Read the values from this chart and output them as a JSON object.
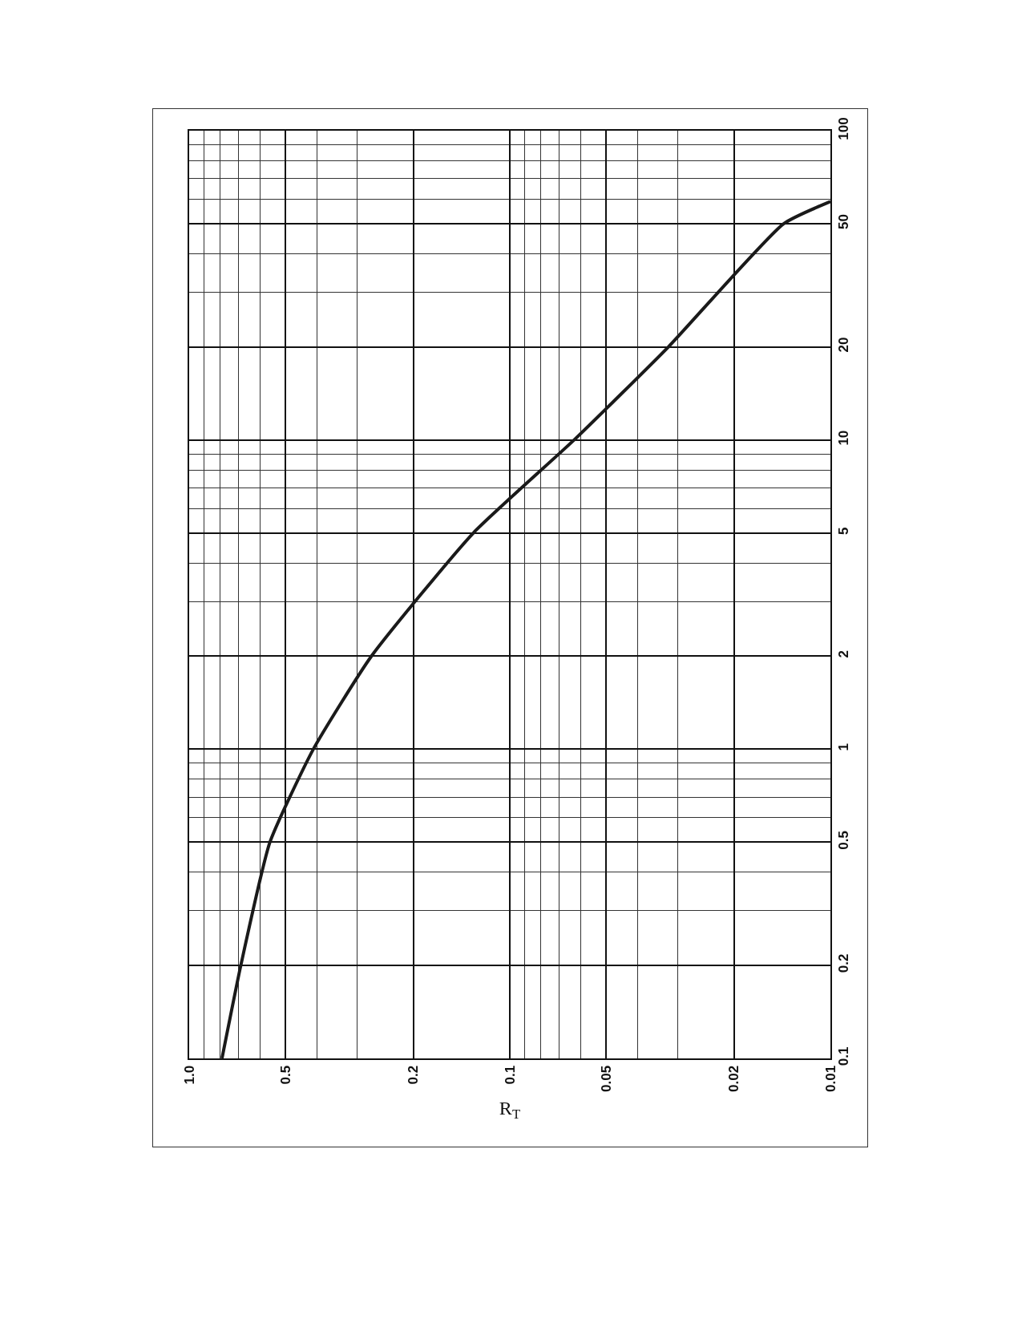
{
  "chart_data": {
    "type": "line",
    "xlabel": "R$_{T}$",
    "log": "xy",
    "grid": true,
    "marker": "none",
    "line_style": "solid",
    "series": [
      {
        "color": "#1a1a1a",
        "x": [
          0.79,
          0.69,
          0.56,
          0.41,
          0.27,
          0.13,
          0.063,
          0.032,
          0.014,
          0.01
        ],
        "values": [
          0.1,
          0.2,
          0.5,
          1,
          2,
          5,
          10,
          20,
          50,
          59
        ]
      }
    ],
    "xlim": [
      1,
      0.01
    ],
    "xticks": [
      {
        "value": 1,
        "label": "1.0"
      },
      0.5,
      0.2,
      0.1,
      0.05,
      0.02,
      0.01
    ],
    "ylim": [
      0.1,
      100
    ],
    "yticks": [
      0.1,
      0.2,
      0.5,
      1,
      2,
      5,
      10,
      20,
      50,
      100
    ]
  }
}
